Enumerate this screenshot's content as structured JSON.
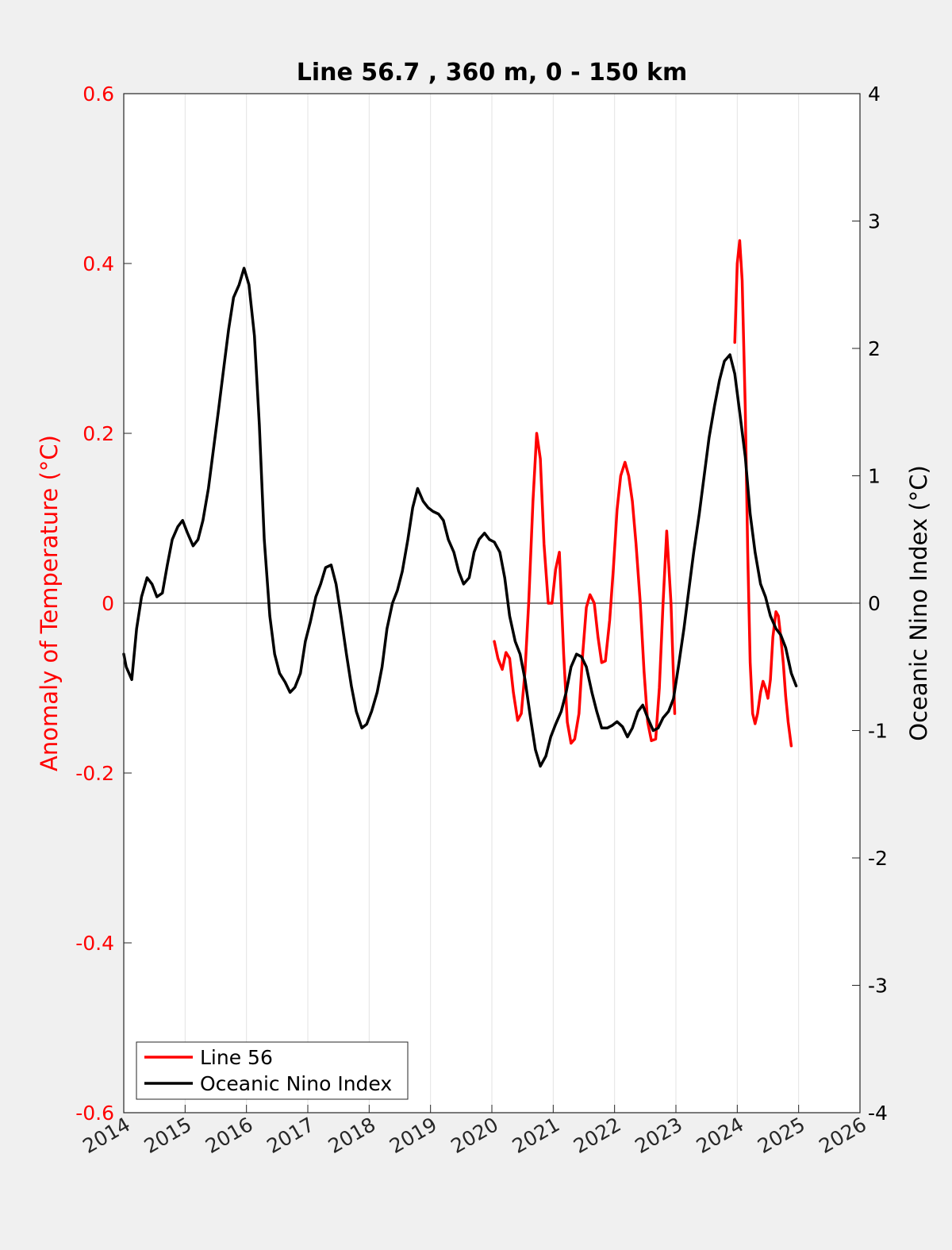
{
  "chart_data": {
    "type": "line",
    "title": "Line 56.7 , 360 m, 0 - 150 km",
    "xlabel": "",
    "ylabel_left": "Anomaly of Temperature (°C)",
    "ylabel_right": "Oceanic Nino Index (°C)",
    "xlim": [
      2014,
      2026
    ],
    "ylim_left": [
      -0.6,
      0.6
    ],
    "ylim_right": [
      -4,
      4
    ],
    "x_ticks": [
      "2014",
      "2015",
      "2016",
      "2017",
      "2018",
      "2019",
      "2020",
      "2021",
      "2022",
      "2023",
      "2024",
      "2025",
      "2026"
    ],
    "y_ticks_left": [
      "0.6",
      "0.4",
      "0.2",
      "0",
      "-0.2",
      "-0.4",
      "-0.6"
    ],
    "y_ticks_right": [
      "4",
      "3",
      "2",
      "1",
      "0",
      "-1",
      "-2",
      "-3",
      "-4"
    ],
    "grid": "vertical",
    "legend_position": "bottom-left",
    "colors": {
      "line56": "#ff0000",
      "oni": "#000000",
      "left_axis": "#ff0000",
      "right_axis": "#000000"
    },
    "series": [
      {
        "name": "Line 56",
        "axis": "left",
        "segments": [
          [
            [
              2020.04,
              -0.045
            ],
            [
              2020.1,
              -0.065
            ],
            [
              2020.17,
              -0.078
            ],
            [
              2020.23,
              -0.058
            ],
            [
              2020.29,
              -0.065
            ],
            [
              2020.35,
              -0.105
            ],
            [
              2020.42,
              -0.138
            ],
            [
              2020.48,
              -0.13
            ],
            [
              2020.54,
              -0.08
            ],
            [
              2020.6,
              0.0
            ],
            [
              2020.67,
              0.12
            ],
            [
              2020.73,
              0.2
            ],
            [
              2020.79,
              0.17
            ],
            [
              2020.85,
              0.07
            ],
            [
              2020.92,
              0.0
            ],
            [
              2020.98,
              0.0
            ],
            [
              2021.04,
              0.04
            ],
            [
              2021.1,
              0.06
            ],
            [
              2021.17,
              -0.06
            ],
            [
              2021.23,
              -0.14
            ],
            [
              2021.29,
              -0.165
            ],
            [
              2021.35,
              -0.16
            ],
            [
              2021.42,
              -0.13
            ],
            [
              2021.48,
              -0.06
            ],
            [
              2021.54,
              -0.005
            ],
            [
              2021.6,
              0.01
            ],
            [
              2021.67,
              0.0
            ],
            [
              2021.73,
              -0.04
            ],
            [
              2021.79,
              -0.07
            ],
            [
              2021.85,
              -0.068
            ],
            [
              2021.92,
              -0.02
            ],
            [
              2021.98,
              0.04
            ],
            [
              2022.04,
              0.11
            ],
            [
              2022.1,
              0.15
            ],
            [
              2022.17,
              0.166
            ],
            [
              2022.23,
              0.15
            ],
            [
              2022.29,
              0.12
            ],
            [
              2022.35,
              0.07
            ],
            [
              2022.42,
              0.0
            ],
            [
              2022.48,
              -0.08
            ],
            [
              2022.54,
              -0.14
            ],
            [
              2022.6,
              -0.162
            ],
            [
              2022.67,
              -0.16
            ],
            [
              2022.73,
              -0.1
            ],
            [
              2022.79,
              0.0
            ],
            [
              2022.85,
              0.085
            ],
            [
              2022.92,
              0.0
            ],
            [
              2022.98,
              -0.13
            ]
          ],
          [
            [
              2023.96,
              0.307
            ],
            [
              2024.0,
              0.4
            ],
            [
              2024.04,
              0.427
            ],
            [
              2024.08,
              0.38
            ],
            [
              2024.13,
              0.23
            ],
            [
              2024.17,
              0.06
            ],
            [
              2024.21,
              -0.07
            ],
            [
              2024.25,
              -0.13
            ],
            [
              2024.29,
              -0.142
            ],
            [
              2024.33,
              -0.13
            ],
            [
              2024.38,
              -0.105
            ],
            [
              2024.42,
              -0.092
            ],
            [
              2024.46,
              -0.1
            ],
            [
              2024.5,
              -0.112
            ],
            [
              2024.54,
              -0.09
            ],
            [
              2024.58,
              -0.04
            ],
            [
              2024.63,
              -0.01
            ],
            [
              2024.67,
              -0.015
            ],
            [
              2024.71,
              -0.04
            ],
            [
              2024.75,
              -0.07
            ],
            [
              2024.79,
              -0.11
            ],
            [
              2024.83,
              -0.14
            ],
            [
              2024.88,
              -0.168
            ]
          ]
        ]
      },
      {
        "name": "Oceanic Nino Index",
        "axis": "right",
        "segments": [
          [
            [
              2014.0,
              -0.4
            ],
            [
              2014.04,
              -0.5
            ],
            [
              2014.13,
              -0.6
            ],
            [
              2014.21,
              -0.2
            ],
            [
              2014.29,
              0.05
            ],
            [
              2014.38,
              0.2
            ],
            [
              2014.46,
              0.15
            ],
            [
              2014.54,
              0.05
            ],
            [
              2014.63,
              0.08
            ],
            [
              2014.71,
              0.3
            ],
            [
              2014.79,
              0.5
            ],
            [
              2014.88,
              0.6
            ],
            [
              2014.96,
              0.65
            ],
            [
              2015.04,
              0.55
            ],
            [
              2015.13,
              0.45
            ],
            [
              2015.21,
              0.5
            ],
            [
              2015.29,
              0.65
            ],
            [
              2015.38,
              0.9
            ],
            [
              2015.46,
              1.2
            ],
            [
              2015.54,
              1.5
            ],
            [
              2015.63,
              1.85
            ],
            [
              2015.71,
              2.15
            ],
            [
              2015.79,
              2.4
            ],
            [
              2015.88,
              2.5
            ],
            [
              2015.96,
              2.63
            ],
            [
              2016.04,
              2.5
            ],
            [
              2016.13,
              2.1
            ],
            [
              2016.21,
              1.4
            ],
            [
              2016.29,
              0.5
            ],
            [
              2016.38,
              -0.1
            ],
            [
              2016.46,
              -0.4
            ],
            [
              2016.54,
              -0.55
            ],
            [
              2016.63,
              -0.62
            ],
            [
              2016.71,
              -0.7
            ],
            [
              2016.79,
              -0.66
            ],
            [
              2016.88,
              -0.55
            ],
            [
              2016.96,
              -0.3
            ],
            [
              2017.04,
              -0.15
            ],
            [
              2017.13,
              0.05
            ],
            [
              2017.21,
              0.15
            ],
            [
              2017.29,
              0.28
            ],
            [
              2017.38,
              0.3
            ],
            [
              2017.46,
              0.15
            ],
            [
              2017.54,
              -0.1
            ],
            [
              2017.63,
              -0.4
            ],
            [
              2017.71,
              -0.65
            ],
            [
              2017.79,
              -0.85
            ],
            [
              2017.88,
              -0.98
            ],
            [
              2017.96,
              -0.95
            ],
            [
              2018.04,
              -0.85
            ],
            [
              2018.13,
              -0.7
            ],
            [
              2018.21,
              -0.5
            ],
            [
              2018.29,
              -0.2
            ],
            [
              2018.38,
              0.0
            ],
            [
              2018.46,
              0.1
            ],
            [
              2018.54,
              0.25
            ],
            [
              2018.63,
              0.5
            ],
            [
              2018.71,
              0.75
            ],
            [
              2018.79,
              0.9
            ],
            [
              2018.88,
              0.8
            ],
            [
              2018.96,
              0.75
            ],
            [
              2019.04,
              0.72
            ],
            [
              2019.13,
              0.7
            ],
            [
              2019.21,
              0.65
            ],
            [
              2019.29,
              0.5
            ],
            [
              2019.38,
              0.4
            ],
            [
              2019.46,
              0.25
            ],
            [
              2019.54,
              0.15
            ],
            [
              2019.63,
              0.2
            ],
            [
              2019.71,
              0.4
            ],
            [
              2019.79,
              0.5
            ],
            [
              2019.88,
              0.55
            ],
            [
              2019.96,
              0.5
            ],
            [
              2020.04,
              0.48
            ],
            [
              2020.13,
              0.4
            ],
            [
              2020.21,
              0.2
            ],
            [
              2020.29,
              -0.1
            ],
            [
              2020.38,
              -0.3
            ],
            [
              2020.46,
              -0.4
            ],
            [
              2020.54,
              -0.6
            ],
            [
              2020.63,
              -0.9
            ],
            [
              2020.71,
              -1.15
            ],
            [
              2020.79,
              -1.28
            ],
            [
              2020.88,
              -1.2
            ],
            [
              2020.96,
              -1.05
            ],
            [
              2021.04,
              -0.95
            ],
            [
              2021.13,
              -0.85
            ],
            [
              2021.21,
              -0.7
            ],
            [
              2021.29,
              -0.5
            ],
            [
              2021.38,
              -0.4
            ],
            [
              2021.46,
              -0.42
            ],
            [
              2021.54,
              -0.5
            ],
            [
              2021.63,
              -0.7
            ],
            [
              2021.71,
              -0.85
            ],
            [
              2021.79,
              -0.98
            ],
            [
              2021.88,
              -0.98
            ],
            [
              2021.96,
              -0.96
            ],
            [
              2022.04,
              -0.93
            ],
            [
              2022.13,
              -0.97
            ],
            [
              2022.21,
              -1.05
            ],
            [
              2022.29,
              -0.98
            ],
            [
              2022.38,
              -0.85
            ],
            [
              2022.46,
              -0.8
            ],
            [
              2022.54,
              -0.9
            ],
            [
              2022.63,
              -1.0
            ],
            [
              2022.71,
              -0.98
            ],
            [
              2022.79,
              -0.9
            ],
            [
              2022.88,
              -0.85
            ],
            [
              2022.96,
              -0.75
            ],
            [
              2023.04,
              -0.5
            ],
            [
              2023.13,
              -0.2
            ],
            [
              2023.21,
              0.1
            ],
            [
              2023.29,
              0.4
            ],
            [
              2023.38,
              0.7
            ],
            [
              2023.46,
              1.0
            ],
            [
              2023.54,
              1.3
            ],
            [
              2023.63,
              1.55
            ],
            [
              2023.71,
              1.75
            ],
            [
              2023.79,
              1.9
            ],
            [
              2023.88,
              1.95
            ],
            [
              2023.96,
              1.8
            ],
            [
              2024.04,
              1.5
            ],
            [
              2024.13,
              1.15
            ],
            [
              2024.21,
              0.7
            ],
            [
              2024.29,
              0.4
            ],
            [
              2024.38,
              0.15
            ],
            [
              2024.46,
              0.05
            ],
            [
              2024.54,
              -0.1
            ],
            [
              2024.63,
              -0.2
            ],
            [
              2024.71,
              -0.25
            ],
            [
              2024.79,
              -0.35
            ],
            [
              2024.88,
              -0.55
            ],
            [
              2024.96,
              -0.65
            ]
          ]
        ]
      }
    ]
  }
}
